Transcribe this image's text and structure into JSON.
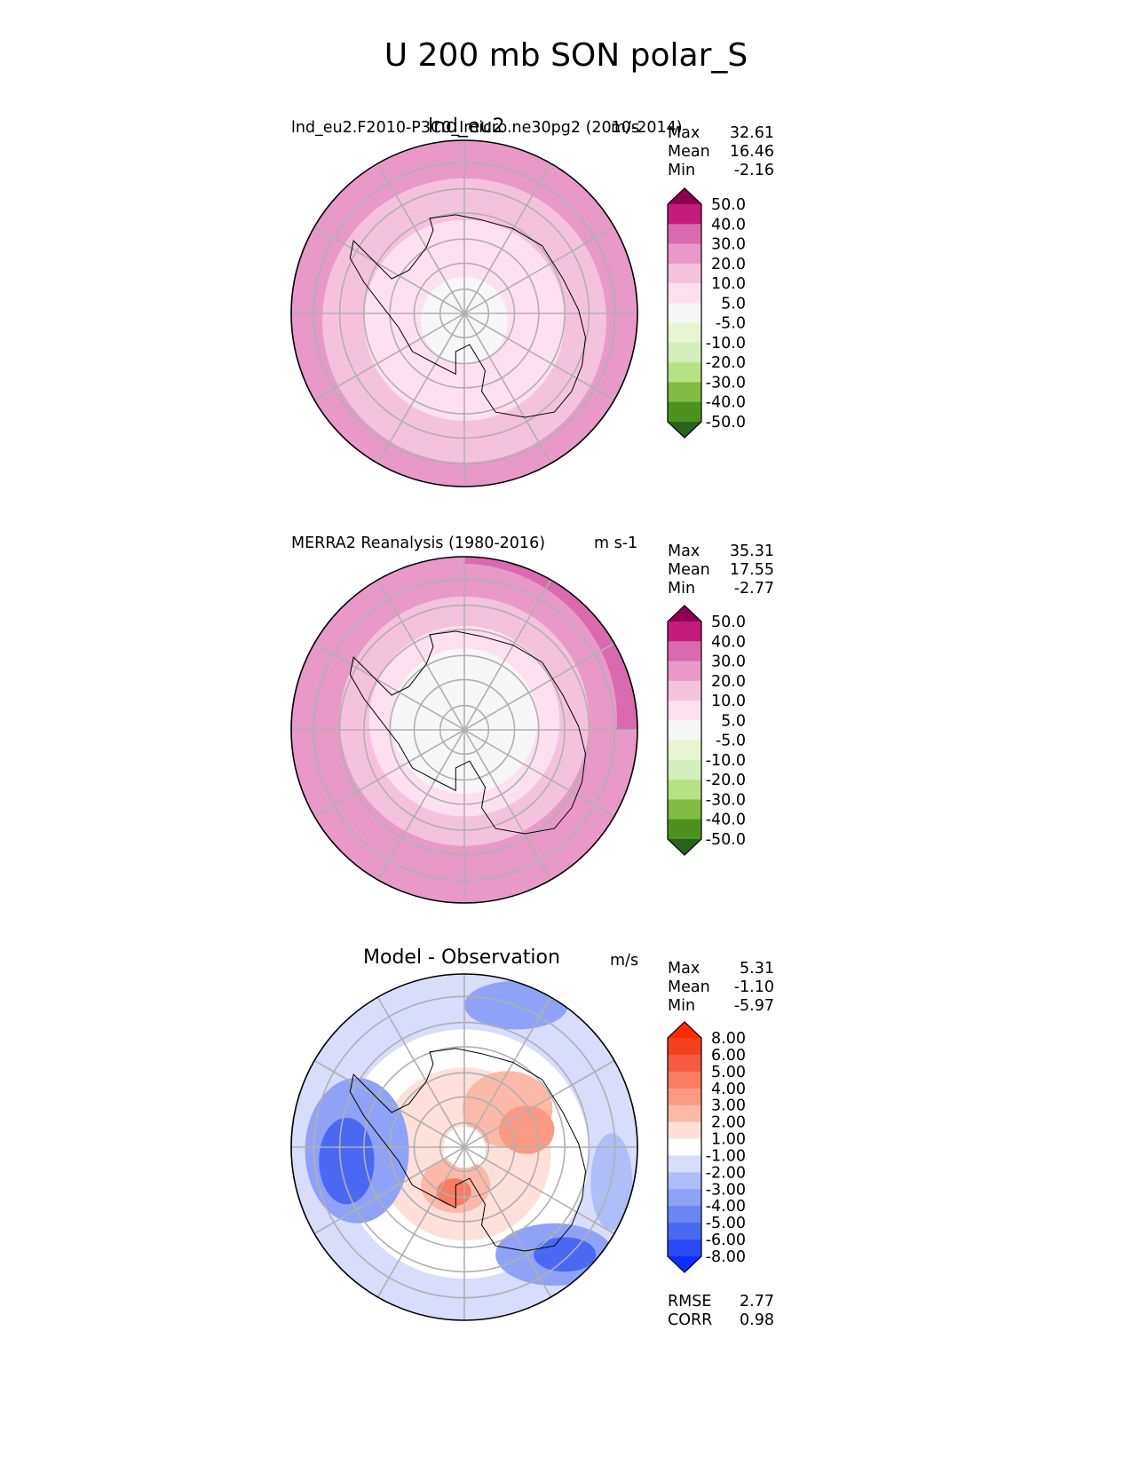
{
  "chart_data": {
    "type": "polar-contour",
    "title": "U 200 mb SON polar_S",
    "panels": [
      {
        "name": "test",
        "title": "lnd_eu2",
        "subtitle": "lnd_eu2.F2010-P3C0_Imicro.ne30pg2 (2010-2014)",
        "units": "m/s",
        "stats": {
          "max_label": "Max",
          "max": "32.61",
          "mean_label": "Mean",
          "mean": "16.46",
          "min_label": "Min",
          "min": "-2.16"
        },
        "colorbar": {
          "levels": [
            "-50.0",
            "-40.0",
            "-30.0",
            "-20.0",
            "-10.0",
            "-5.0",
            "5.0",
            "10.0",
            "20.0",
            "30.0",
            "40.0",
            "50.0"
          ],
          "colors": [
            "#276419",
            "#4d9221",
            "#7fbc41",
            "#b8e186",
            "#d3eebb",
            "#e6f5d0",
            "#f7f7f7",
            "#fde0ef",
            "#f5c2de",
            "#e899c7",
            "#d96aad",
            "#c51b7d",
            "#8e0152"
          ]
        },
        "rings": [
          {
            "r": 1.0,
            "color": "#e899c7"
          },
          {
            "r": 0.82,
            "color": "#f5c2de"
          },
          {
            "r": 0.58,
            "color": "#fde0ef"
          },
          {
            "r": 0.25,
            "color": "#f7f7f7"
          }
        ]
      },
      {
        "name": "reference",
        "title": "",
        "subtitle": "MERRA2 Reanalysis (1980-2016)",
        "units": "m s-1",
        "stats": {
          "max_label": "Max",
          "max": "35.31",
          "mean_label": "Mean",
          "mean": "17.55",
          "min_label": "Min",
          "min": "-2.77"
        },
        "colorbar": {
          "levels": [
            "-50.0",
            "-40.0",
            "-30.0",
            "-20.0",
            "-10.0",
            "-5.0",
            "5.0",
            "10.0",
            "20.0",
            "30.0",
            "40.0",
            "50.0"
          ],
          "colors": [
            "#276419",
            "#4d9221",
            "#7fbc41",
            "#b8e186",
            "#d3eebb",
            "#e6f5d0",
            "#f7f7f7",
            "#fde0ef",
            "#f5c2de",
            "#e899c7",
            "#d96aad",
            "#c51b7d",
            "#8e0152"
          ]
        },
        "rings": [
          {
            "r": 1.0,
            "color": "#e899c7"
          },
          {
            "r": 0.72,
            "color": "#f5c2de"
          },
          {
            "r": 0.55,
            "color": "#fde0ef"
          },
          {
            "r": 0.42,
            "color": "#f7f7f7"
          }
        ]
      },
      {
        "name": "difference",
        "title": "Model - Observation",
        "subtitle": "",
        "units": "m/s",
        "stats": {
          "max_label": "Max",
          "max": "5.31",
          "mean_label": "Mean",
          "mean": "-1.10",
          "min_label": "Min",
          "min": "-5.97"
        },
        "extra_stats": {
          "rmse_label": "RMSE",
          "rmse": "2.77",
          "corr_label": "CORR",
          "corr": "0.98"
        },
        "colorbar": {
          "levels": [
            "-8.00",
            "-6.00",
            "-5.00",
            "-4.00",
            "-3.00",
            "-2.00",
            "-1.00",
            "1.00",
            "2.00",
            "3.00",
            "4.00",
            "5.00",
            "6.00",
            "8.00"
          ],
          "colors": [
            "#0d2eff",
            "#2a4bf5",
            "#4a69f2",
            "#6a86f4",
            "#8ea3f6",
            "#afbdf8",
            "#d7ddfb",
            "#ffffff",
            "#fde0da",
            "#fcb9a7",
            "#fb9a83",
            "#f97c63",
            "#f65b41",
            "#f3401f",
            "#ff2a00"
          ]
        },
        "rings": [
          {
            "r": 1.0,
            "color": "#d7ddfb"
          },
          {
            "r": 0.72,
            "color": "#ffffff"
          },
          {
            "r": 0.5,
            "color": "#fde0da"
          },
          {
            "r": 0.12,
            "color": "#ffffff"
          }
        ]
      }
    ]
  }
}
